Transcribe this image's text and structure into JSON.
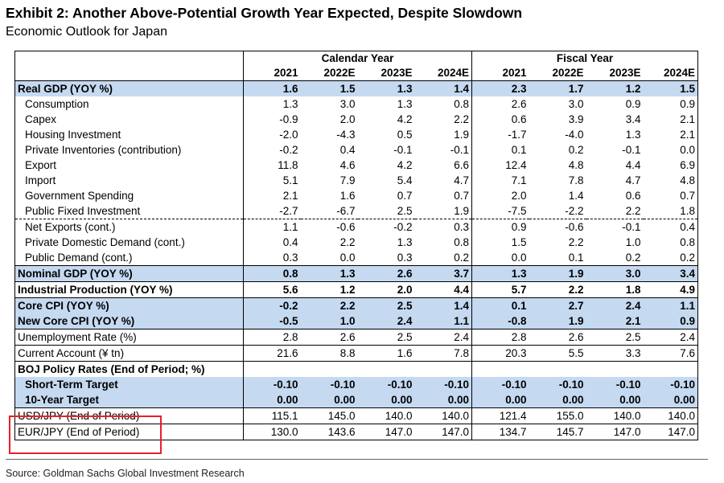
{
  "title": "Exhibit 2: Another Above-Potential Growth Year Expected, Despite Slowdown",
  "subtitle": "Economic Outlook for Japan",
  "source": "Source: Goldman Sachs Global Investment Research",
  "highlight_color": "#e8202a",
  "row_highlight_color": "#c5d9f1",
  "groups": {
    "calendar": "Calendar Year",
    "fiscal": "Fiscal Year"
  },
  "years": [
    "2021",
    "2022E",
    "2023E",
    "2024E",
    "2021",
    "2022E",
    "2023E",
    "2024E"
  ],
  "rows": [
    {
      "label": "Real GDP (YOY %)",
      "values": [
        "1.6",
        "1.5",
        "1.3",
        "1.4",
        "2.3",
        "1.7",
        "1.2",
        "1.5"
      ]
    },
    {
      "label": "Consumption",
      "values": [
        "1.3",
        "3.0",
        "1.3",
        "0.8",
        "2.6",
        "3.0",
        "0.9",
        "0.9"
      ]
    },
    {
      "label": "Capex",
      "values": [
        "-0.9",
        "2.0",
        "4.2",
        "2.2",
        "0.6",
        "3.9",
        "3.4",
        "2.1"
      ]
    },
    {
      "label": "Housing Investment",
      "values": [
        "-2.0",
        "-4.3",
        "0.5",
        "1.9",
        "-1.7",
        "-4.0",
        "1.3",
        "2.1"
      ]
    },
    {
      "label": "Private Inventories (contribution)",
      "values": [
        "-0.2",
        "0.4",
        "-0.1",
        "-0.1",
        "0.1",
        "0.2",
        "-0.1",
        "0.0"
      ]
    },
    {
      "label": "Export",
      "values": [
        "11.8",
        "4.6",
        "4.2",
        "6.6",
        "12.4",
        "4.8",
        "4.4",
        "6.9"
      ]
    },
    {
      "label": "Import",
      "values": [
        "5.1",
        "7.9",
        "5.4",
        "4.7",
        "7.1",
        "7.8",
        "4.7",
        "4.8"
      ]
    },
    {
      "label": "Government Spending",
      "values": [
        "2.1",
        "1.6",
        "0.7",
        "0.7",
        "2.0",
        "1.4",
        "0.6",
        "0.7"
      ]
    },
    {
      "label": "Public Fixed Investment",
      "values": [
        "-2.7",
        "-6.7",
        "2.5",
        "1.9",
        "-7.5",
        "-2.2",
        "2.2",
        "1.8"
      ]
    },
    {
      "label": "Net Exports (cont.)",
      "values": [
        "1.1",
        "-0.6",
        "-0.2",
        "0.3",
        "0.9",
        "-0.6",
        "-0.1",
        "0.4"
      ]
    },
    {
      "label": "Private Domestic Demand  (cont.)",
      "values": [
        "0.4",
        "2.2",
        "1.3",
        "0.8",
        "1.5",
        "2.2",
        "1.0",
        "0.8"
      ]
    },
    {
      "label": "Public Demand (cont.)",
      "values": [
        "0.3",
        "0.0",
        "0.3",
        "0.2",
        "0.0",
        "0.1",
        "0.2",
        "0.2"
      ]
    },
    {
      "label": "Nominal GDP (YOY %)",
      "values": [
        "0.8",
        "1.3",
        "2.6",
        "3.7",
        "1.3",
        "1.9",
        "3.0",
        "3.4"
      ]
    },
    {
      "label": "Industrial Production (YOY %)",
      "values": [
        "5.6",
        "1.2",
        "2.0",
        "4.4",
        "5.7",
        "2.2",
        "1.8",
        "4.9"
      ]
    },
    {
      "label": "Core CPI (YOY %)",
      "values": [
        "-0.2",
        "2.2",
        "2.5",
        "1.4",
        "0.1",
        "2.7",
        "2.4",
        "1.1"
      ]
    },
    {
      "label": "New Core CPI (YOY %)",
      "values": [
        "-0.5",
        "1.0",
        "2.4",
        "1.1",
        "-0.8",
        "1.9",
        "2.1",
        "0.9"
      ]
    },
    {
      "label": "Unemployment Rate (%)",
      "values": [
        "2.8",
        "2.6",
        "2.5",
        "2.4",
        "2.8",
        "2.6",
        "2.5",
        "2.4"
      ]
    },
    {
      "label": "Current Account (¥ tn)",
      "values": [
        "21.6",
        "8.8",
        "1.6",
        "7.8",
        "20.3",
        "5.5",
        "3.3",
        "7.6"
      ]
    },
    {
      "label": "BOJ Policy Rates (End of Period; %)",
      "values": [
        "",
        "",
        "",
        "",
        "",
        "",
        "",
        ""
      ]
    },
    {
      "label": "Short-Term Target",
      "values": [
        "-0.10",
        "-0.10",
        "-0.10",
        "-0.10",
        "-0.10",
        "-0.10",
        "-0.10",
        "-0.10"
      ]
    },
    {
      "label": "10-Year Target",
      "values": [
        "0.00",
        "0.00",
        "0.00",
        "0.00",
        "0.00",
        "0.00",
        "0.00",
        "0.00"
      ]
    },
    {
      "label": "USD/JPY (End of Period)",
      "values": [
        "115.1",
        "145.0",
        "140.0",
        "140.0",
        "121.4",
        "155.0",
        "140.0",
        "140.0"
      ]
    },
    {
      "label": "EUR/JPY (End of Period)",
      "values": [
        "130.0",
        "143.6",
        "147.0",
        "147.0",
        "134.7",
        "145.7",
        "147.0",
        "147.0"
      ]
    }
  ]
}
